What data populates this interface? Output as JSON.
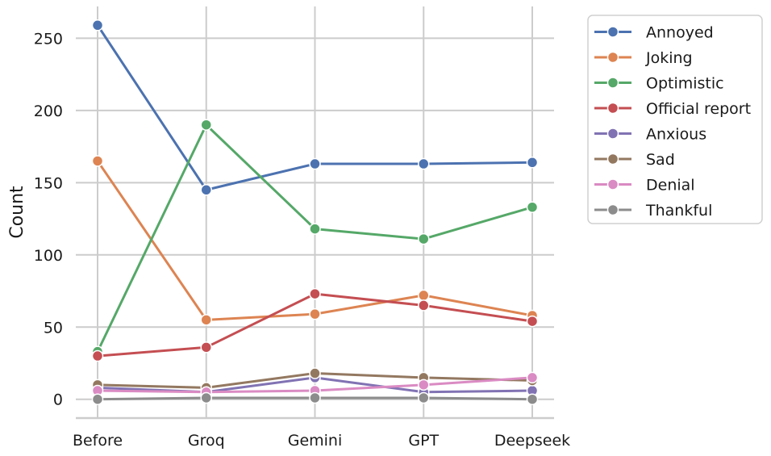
{
  "chart_data": {
    "type": "line",
    "categories": [
      "Before",
      "Groq",
      "Gemini",
      "GPT",
      "Deepseek"
    ],
    "ylabel": "Count",
    "xlabel": "",
    "ylim": [
      -13,
      272
    ],
    "yticks": [
      0,
      50,
      100,
      150,
      200,
      250
    ],
    "grid": true,
    "legend_position": "outside-right-top",
    "series": [
      {
        "name": "Annoyed",
        "color": "#4c72b0",
        "values": [
          259,
          145,
          163,
          163,
          164
        ]
      },
      {
        "name": "Joking",
        "color": "#dd8452",
        "values": [
          165,
          55,
          59,
          72,
          58
        ]
      },
      {
        "name": "Optimistic",
        "color": "#55a868",
        "values": [
          33,
          190,
          118,
          111,
          133
        ]
      },
      {
        "name": "Official report",
        "color": "#c44e52",
        "values": [
          30,
          36,
          73,
          65,
          54
        ]
      },
      {
        "name": "Anxious",
        "color": "#8172b3",
        "values": [
          8,
          5,
          15,
          5,
          6
        ]
      },
      {
        "name": "Sad",
        "color": "#937860",
        "values": [
          10,
          8,
          18,
          15,
          13
        ]
      },
      {
        "name": "Denial",
        "color": "#da8bc3",
        "values": [
          6,
          5,
          6,
          10,
          15
        ]
      },
      {
        "name": "Thankful",
        "color": "#8c8c8c",
        "values": [
          0,
          1,
          1,
          1,
          0
        ]
      }
    ]
  }
}
